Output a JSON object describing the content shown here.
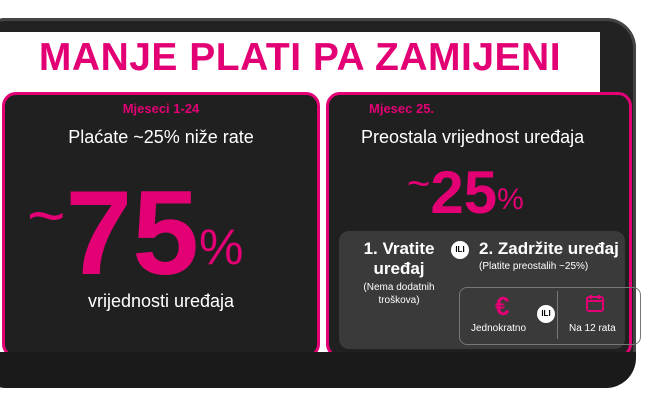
{
  "headline": "MANJE PLATI PA ZAMIJENI",
  "left_panel": {
    "period": "Mjeseci 1-24",
    "subtitle": "Plaćate ~25% niže rate",
    "big_tilde": "~",
    "big_value": "75",
    "big_pct": "%",
    "caption": "vrijednosti uređaja"
  },
  "right_panel": {
    "period": "Mjesec 25.",
    "subtitle": "Preostala vrijednost uređaja",
    "big_tilde": "~",
    "big_value": "25",
    "big_pct": "%",
    "option1": {
      "title_line1": "1. Vratite",
      "title_line2": "uređaj",
      "note_line1": "(Nema dodatnih",
      "note_line2": "troškova)"
    },
    "or_label": "ILI",
    "option2": {
      "title": "2. Zadržite uređaj",
      "note": "(Platite preostalih ~25%)"
    },
    "payment": {
      "once_label": "Jednokratno",
      "or_label": "ILI",
      "rates_label": "Na 12 rata"
    }
  },
  "colors": {
    "accent": "#e20074",
    "panel_bg": "#202020",
    "inner_bg": "#3a3a3a"
  },
  "icons": [
    "euro-icon",
    "calendar-icon"
  ]
}
